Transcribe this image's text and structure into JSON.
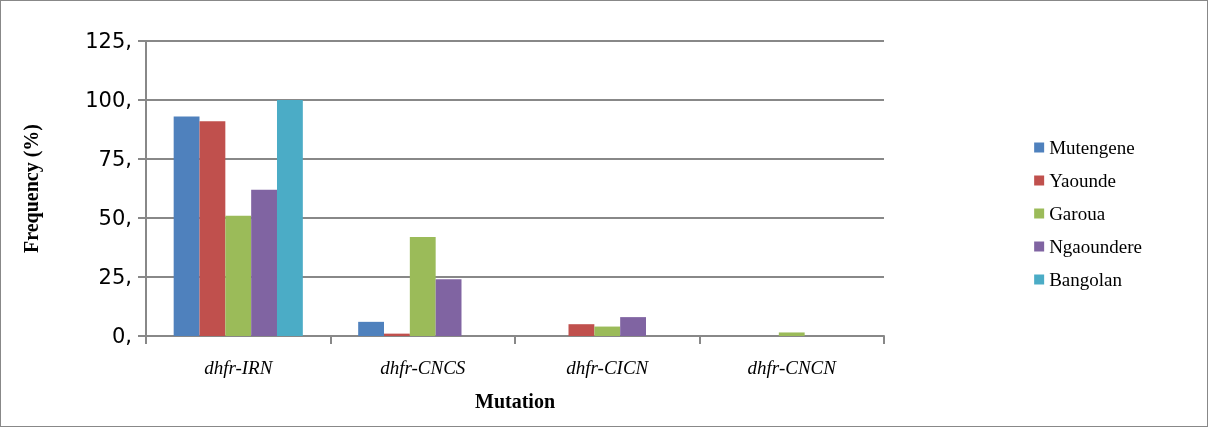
{
  "chart_data": {
    "type": "bar",
    "xlabel": "Mutation",
    "ylabel": "Frequency (%)",
    "categories": [
      "dhfr-IRN",
      "dhfr-CNCS",
      "dhfr-CICN",
      "dhfr-CNCN"
    ],
    "series": [
      {
        "name": "Mutengene",
        "color": "#4f81bd",
        "values": [
          93,
          6,
          0,
          0
        ]
      },
      {
        "name": "Yaounde",
        "color": "#c0504d",
        "values": [
          91,
          1,
          5,
          0
        ]
      },
      {
        "name": "Garoua",
        "color": "#9bbb59",
        "values": [
          51,
          42,
          4,
          1.5
        ]
      },
      {
        "name": "Ngaoundere",
        "color": "#8064a2",
        "values": [
          62,
          24,
          8,
          0
        ]
      },
      {
        "name": "Bangolan",
        "color": "#4bacc6",
        "values": [
          100,
          0,
          0,
          0
        ]
      }
    ],
    "ylim": [
      0,
      125
    ],
    "yticks": [
      {
        "value": 0,
        "label": "0,"
      },
      {
        "value": 25,
        "label": "25,"
      },
      {
        "value": 50,
        "label": "50,"
      },
      {
        "value": 75,
        "label": "75,"
      },
      {
        "value": 100,
        "label": "100,"
      },
      {
        "value": 125,
        "label": "125,"
      }
    ],
    "grid": "y",
    "legend": "right"
  }
}
